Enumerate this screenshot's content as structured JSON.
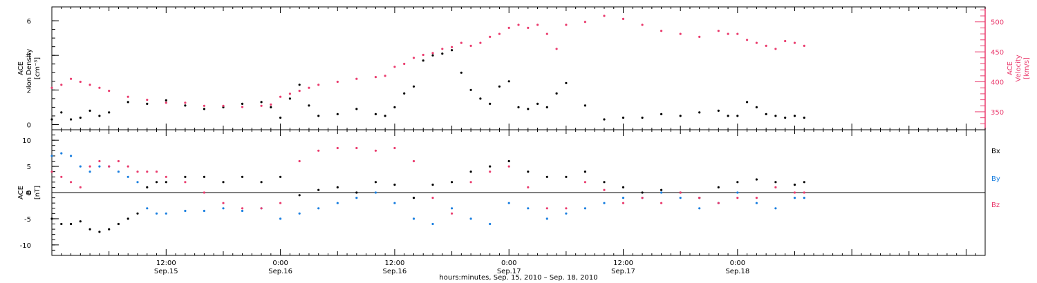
{
  "time_axis": {
    "start_day": "Sep.15",
    "range_hours": [
      0,
      98
    ],
    "ticks": [
      {
        "hour": 12,
        "time": "12:00",
        "day": "Sep.15"
      },
      {
        "hour": 24,
        "time": "0:00",
        "day": "Sep.16"
      },
      {
        "hour": 36,
        "time": "12:00",
        "day": "Sep.16"
      },
      {
        "hour": 48,
        "time": "0:00",
        "day": "Sep.17"
      },
      {
        "hour": 60,
        "time": "12:00",
        "day": "Sep.17"
      },
      {
        "hour": 72,
        "time": "0:00",
        "day": "Sep.18"
      }
    ],
    "xlabel": "hours:minutes, Sep. 15, 2010 – Sep. 18, 2010"
  },
  "colors": {
    "black": "#000000",
    "pink": "#ea3c6e",
    "blue": "#1a7fe0"
  },
  "chart_data": [
    {
      "type": "scatter",
      "panel": "plasma",
      "ylabel_left": [
        "ACE",
        "Ion Density",
        "[cm⁻³]"
      ],
      "ylim_left": [
        -0.3,
        6.8
      ],
      "yticks_left": [
        "0",
        "2",
        "4",
        "6"
      ],
      "ylabel_right": [
        "ACE",
        "Velocity",
        "[km/s]"
      ],
      "ylim_right": [
        320,
        525
      ],
      "yticks_right": [
        "350",
        "400",
        "450",
        "500"
      ],
      "series": [
        {
          "axis": "left",
          "color": "black",
          "x": [
            0,
            1,
            2,
            3,
            4,
            5,
            6,
            8,
            10,
            12,
            14,
            16,
            18,
            20,
            22,
            23,
            24,
            25,
            26,
            27,
            28,
            30,
            32,
            34,
            35,
            36,
            37,
            38,
            39,
            40,
            41,
            42,
            43,
            44,
            45,
            46,
            47,
            48,
            49,
            50,
            51,
            52,
            53,
            54,
            56,
            58,
            60,
            62,
            64,
            66,
            68,
            70,
            71,
            72,
            73,
            74,
            75,
            76,
            77,
            78,
            79
          ],
          "y": [
            0.3,
            0.7,
            0.3,
            0.4,
            0.8,
            0.5,
            0.7,
            1.3,
            1.2,
            1.4,
            1.1,
            0.9,
            1.0,
            1.2,
            1.3,
            1.0,
            0.4,
            1.5,
            2.3,
            1.1,
            0.5,
            0.6,
            0.9,
            0.6,
            0.5,
            1.0,
            1.8,
            2.2,
            3.7,
            4.0,
            4.1,
            4.3,
            3.0,
            2.0,
            1.5,
            1.2,
            2.2,
            2.5,
            1.0,
            0.9,
            1.2,
            1.0,
            1.8,
            2.4,
            1.1,
            0.3,
            0.4,
            0.4,
            0.6,
            0.5,
            0.7,
            0.8,
            0.5,
            0.5,
            1.3,
            1.0,
            0.6,
            0.5,
            0.4,
            0.5,
            0.4
          ]
        },
        {
          "axis": "right",
          "color": "pink",
          "x": [
            0,
            1,
            2,
            3,
            4,
            5,
            6,
            8,
            10,
            12,
            14,
            16,
            18,
            20,
            22,
            23,
            24,
            25,
            26,
            27,
            28,
            30,
            32,
            34,
            35,
            36,
            37,
            38,
            39,
            40,
            41,
            42,
            43,
            44,
            45,
            46,
            47,
            48,
            49,
            50,
            51,
            52,
            53,
            54,
            56,
            58,
            60,
            62,
            64,
            66,
            68,
            70,
            71,
            72,
            73,
            74,
            75,
            76,
            77,
            78,
            79
          ],
          "y": [
            390,
            395,
            405,
            400,
            395,
            390,
            385,
            375,
            370,
            365,
            365,
            360,
            360,
            358,
            360,
            362,
            375,
            380,
            385,
            390,
            395,
            400,
            405,
            408,
            410,
            425,
            430,
            440,
            445,
            448,
            455,
            458,
            465,
            460,
            465,
            475,
            480,
            490,
            495,
            490,
            495,
            480,
            455,
            495,
            500,
            510,
            505,
            495,
            485,
            480,
            475,
            485,
            480,
            480,
            470,
            465,
            460,
            455,
            468,
            465,
            460
          ]
        }
      ]
    },
    {
      "type": "scatter",
      "panel": "magnetic",
      "ylabel_left": [
        "ACE",
        "B",
        "[nT]"
      ],
      "ylim_left": [
        -12,
        12
      ],
      "yticks_left": [
        "-10",
        "-5",
        "0",
        "5",
        "10"
      ],
      "legend": [
        "Bx",
        "By",
        "Bz"
      ],
      "series": [
        {
          "name": "Bx",
          "color": "black",
          "x": [
            0,
            1,
            2,
            3,
            4,
            5,
            6,
            7,
            8,
            9,
            10,
            11,
            12,
            14,
            16,
            18,
            20,
            22,
            24,
            26,
            28,
            30,
            32,
            34,
            36,
            38,
            40,
            42,
            44,
            46,
            48,
            50,
            52,
            54,
            56,
            58,
            60,
            62,
            64,
            66,
            68,
            70,
            72,
            74,
            76,
            78,
            79
          ],
          "y": [
            -5,
            -6,
            -6,
            -5.5,
            -7,
            -7.5,
            -7,
            -6,
            -5,
            -4,
            1,
            2,
            2,
            3,
            3,
            2,
            3,
            2,
            3,
            -0.5,
            0.5,
            1,
            0,
            2,
            1.5,
            -1,
            1.5,
            2,
            4,
            5,
            6,
            4,
            3,
            3,
            4,
            2,
            1,
            0,
            0.5,
            0,
            -1,
            1,
            2,
            2.5,
            2,
            1.5,
            2
          ]
        },
        {
          "name": "By",
          "color": "blue",
          "x": [
            0,
            1,
            2,
            3,
            4,
            5,
            6,
            7,
            8,
            9,
            10,
            11,
            12,
            14,
            16,
            18,
            20,
            22,
            24,
            26,
            28,
            30,
            32,
            34,
            36,
            38,
            40,
            42,
            44,
            46,
            48,
            50,
            52,
            54,
            56,
            58,
            60,
            62,
            64,
            66,
            68,
            70,
            72,
            74,
            76,
            78,
            79
          ],
          "y": [
            7,
            7.5,
            7,
            5,
            4,
            5,
            5,
            4,
            3,
            2,
            -3,
            -4,
            -4,
            -3.5,
            -3.5,
            -3,
            -3.5,
            -3,
            -5,
            -4,
            -3,
            -2,
            -1,
            0,
            -2,
            -5,
            -6,
            -3,
            -5,
            -6,
            -2,
            -3,
            -5,
            -4,
            -3,
            -2,
            -1,
            -1,
            0,
            -1,
            -3,
            -2,
            0,
            -2,
            -3,
            -1,
            -1
          ]
        },
        {
          "name": "Bz",
          "color": "pink",
          "x": [
            0,
            1,
            2,
            3,
            4,
            5,
            6,
            7,
            8,
            9,
            10,
            11,
            12,
            14,
            16,
            18,
            20,
            22,
            24,
            26,
            28,
            30,
            32,
            34,
            36,
            38,
            40,
            42,
            44,
            46,
            48,
            50,
            52,
            54,
            56,
            58,
            60,
            62,
            64,
            66,
            68,
            70,
            72,
            74,
            76,
            78,
            79
          ],
          "y": [
            4,
            3,
            2,
            1,
            5,
            6,
            5,
            6,
            5,
            4,
            4,
            4,
            3,
            2,
            0,
            -2,
            -3,
            -3,
            -2,
            6,
            8,
            8.5,
            8.5,
            8,
            8.5,
            6,
            -1,
            -4,
            2,
            4,
            5,
            1,
            -3,
            -3,
            2,
            0.5,
            -2,
            -1,
            -2,
            0,
            -1,
            -2,
            -1,
            -1,
            1,
            0,
            0
          ]
        }
      ]
    }
  ]
}
